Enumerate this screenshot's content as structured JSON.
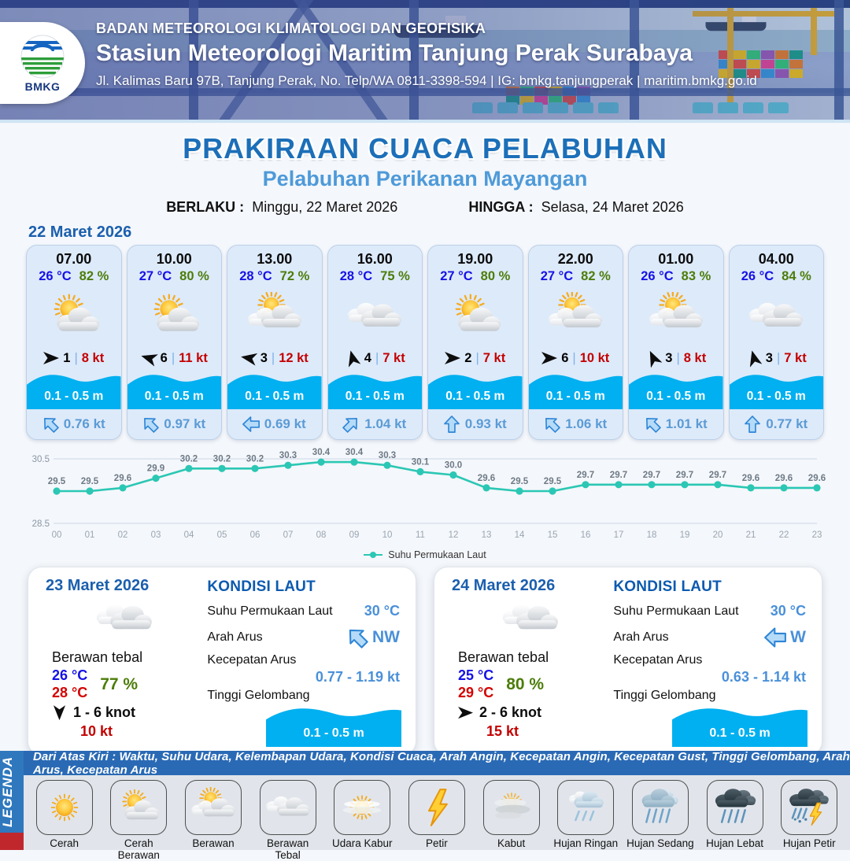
{
  "header": {
    "logo_text": "BMKG",
    "org": "BADAN METEOROLOGI KLIMATOLOGI DAN GEOFISIKA",
    "station": "Stasiun Meteorologi Maritim Tanjung Perak Surabaya",
    "contact": "Jl. Kalimas Baru 97B, Tanjung Perak, No. Telp/WA 0811-3398-594 | IG: bmkg.tanjungperak | maritim.bmkg.go.id"
  },
  "title": {
    "main": "PRAKIRAAN CUACA PELABUHAN",
    "subtitle": "Pelabuhan Perikanan Mayangan",
    "valid_from_label": "BERLAKU :",
    "valid_from": "Minggu, 22 Maret 2026",
    "valid_to_label": "HINGGA :",
    "valid_to": "Selasa, 24 Maret 2026"
  },
  "forecast_date": "22 Maret 2026",
  "forecast_cards": [
    {
      "time": "07.00",
      "temp": "26 °C",
      "humidity": "82 %",
      "icon": "cerah-berawan",
      "wind_dir_deg": 0,
      "wind_speed": "1",
      "gust": "8 kt",
      "wave": "0.1 - 0.5 m",
      "current_dir": "NW",
      "current_speed": "0.76 kt"
    },
    {
      "time": "10.00",
      "temp": "27 °C",
      "humidity": "80 %",
      "icon": "cerah-berawan",
      "wind_dir_deg": 197,
      "wind_speed": "6",
      "gust": "11 kt",
      "wave": "0.1 - 0.5 m",
      "current_dir": "NW",
      "current_speed": "0.97 kt"
    },
    {
      "time": "13.00",
      "temp": "28 °C",
      "humidity": "72 %",
      "icon": "berawan",
      "wind_dir_deg": 190,
      "wind_speed": "3",
      "gust": "12 kt",
      "wave": "0.1 - 0.5 m",
      "current_dir": "W",
      "current_speed": "0.69 kt"
    },
    {
      "time": "16.00",
      "temp": "28 °C",
      "humidity": "75 %",
      "icon": "berawan-tebal",
      "wind_dir_deg": -105,
      "wind_speed": "4",
      "gust": "7 kt",
      "wave": "0.1 - 0.5 m",
      "current_dir": "NE",
      "current_speed": "1.04 kt"
    },
    {
      "time": "19.00",
      "temp": "27 °C",
      "humidity": "80 %",
      "icon": "cerah-berawan",
      "wind_dir_deg": 0,
      "wind_speed": "2",
      "gust": "7 kt",
      "wave": "0.1 - 0.5 m",
      "current_dir": "N",
      "current_speed": "0.93 kt"
    },
    {
      "time": "22.00",
      "temp": "27 °C",
      "humidity": "82 %",
      "icon": "berawan",
      "wind_dir_deg": 0,
      "wind_speed": "6",
      "gust": "10 kt",
      "wave": "0.1 - 0.5 m",
      "current_dir": "NW",
      "current_speed": "1.06 kt"
    },
    {
      "time": "01.00",
      "temp": "26 °C",
      "humidity": "83 %",
      "icon": "berawan",
      "wind_dir_deg": -115,
      "wind_speed": "3",
      "gust": "8 kt",
      "wave": "0.1 - 0.5 m",
      "current_dir": "NW",
      "current_speed": "1.01 kt"
    },
    {
      "time": "04.00",
      "temp": "26 °C",
      "humidity": "84 %",
      "icon": "berawan-tebal",
      "wind_dir_deg": -105,
      "wind_speed": "3",
      "gust": "7 kt",
      "wave": "0.1 - 0.5 m",
      "current_dir": "N",
      "current_speed": "0.77 kt"
    }
  ],
  "chart_data": {
    "type": "line",
    "x": [
      "00",
      "01",
      "02",
      "03",
      "04",
      "05",
      "06",
      "07",
      "08",
      "09",
      "10",
      "11",
      "12",
      "13",
      "14",
      "15",
      "16",
      "17",
      "18",
      "19",
      "20",
      "21",
      "22",
      "23"
    ],
    "series": [
      {
        "name": "Suhu Permukaan Laut",
        "values": [
          29.5,
          29.5,
          29.6,
          29.9,
          30.2,
          30.2,
          30.2,
          30.3,
          30.4,
          30.4,
          30.3,
          30.1,
          30.0,
          29.6,
          29.5,
          29.5,
          29.7,
          29.7,
          29.7,
          29.7,
          29.7,
          29.6,
          29.6,
          29.6
        ]
      }
    ],
    "ylim": [
      28.5,
      30.5
    ],
    "yticks": [
      30.5,
      28.5
    ],
    "line_color": "#2bc7b4",
    "grid": true,
    "legend_position": "bottom"
  },
  "day_cards": [
    {
      "date": "23 Maret 2026",
      "icon": "berawan-tebal",
      "condition": "Berawan tebal",
      "temp_min": "26 °C",
      "temp_max": "28 °C",
      "humidity": "77 %",
      "wind_dir_deg": 90,
      "wind_range": "1 - 6 knot",
      "gust": "10 kt",
      "sea": {
        "title": "KONDISI LAUT",
        "sst_label": "Suhu Permukaan Laut",
        "sst": "30 °C",
        "dir_label": "Arah Arus",
        "dir": "NW",
        "speed_label": "Kecepatan Arus",
        "speed": "0.77 - 1.19 kt",
        "wave_label": "Tinggi Gelombang",
        "wave": "0.1 - 0.5 m"
      }
    },
    {
      "date": "24 Maret 2026",
      "icon": "berawan-tebal",
      "condition": "Berawan tebal",
      "temp_min": "25 °C",
      "temp_max": "29 °C",
      "humidity": "80 %",
      "wind_dir_deg": 0,
      "wind_range": "2 - 6 knot",
      "gust": "15 kt",
      "sea": {
        "title": "KONDISI LAUT",
        "sst_label": "Suhu Permukaan Laut",
        "sst": "30 °C",
        "dir_label": "Arah Arus",
        "dir": "W",
        "speed_label": "Kecepatan Arus",
        "speed": "0.63 - 1.14 kt",
        "wave_label": "Tinggi Gelombang",
        "wave": "0.1 - 0.5 m"
      }
    }
  ],
  "legend": {
    "tab": "LEGENDA",
    "description": "Dari Atas Kiri : Waktu, Suhu Udara, Kelembapan Udara, Kondisi Cuaca, Arah Angin, Kecepatan Angin, Kecepatan Gust, Tinggi Gelombang, Arah Arus, Kecepatan Arus",
    "items": [
      {
        "label": "Cerah",
        "icon": "cerah"
      },
      {
        "label": "Cerah Berawan",
        "icon": "cerah-berawan"
      },
      {
        "label": "Berawan",
        "icon": "berawan"
      },
      {
        "label": "Berawan Tebal",
        "icon": "berawan-tebal"
      },
      {
        "label": "Udara Kabur",
        "icon": "udara-kabur"
      },
      {
        "label": "Petir",
        "icon": "petir"
      },
      {
        "label": "Kabut",
        "icon": "kabut"
      },
      {
        "label": "Hujan Ringan",
        "icon": "hujan-ringan"
      },
      {
        "label": "Hujan Sedang",
        "icon": "hujan-sedang"
      },
      {
        "label": "Hujan Lebat",
        "icon": "hujan-lebat"
      },
      {
        "label": "Hujan Petir",
        "icon": "hujan-petir"
      }
    ]
  }
}
